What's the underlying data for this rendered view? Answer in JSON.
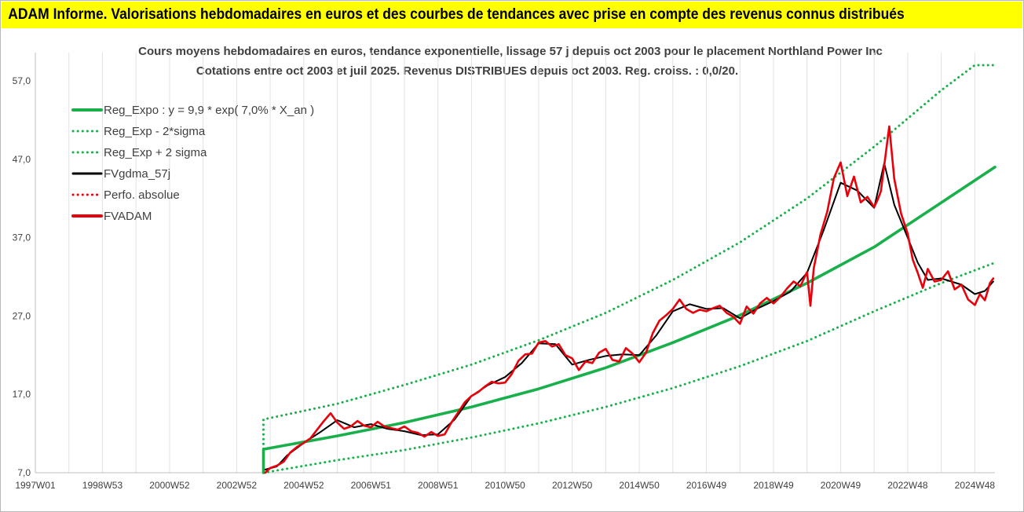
{
  "banner": {
    "title": "ADAM Informe. Valorisations hebdomadaires en euros et des courbes de tendances avec prise en compte des revenus connus distribués",
    "bg_color": "#ffff00"
  },
  "chart_data": {
    "type": "line",
    "title": "Cours moyens hebdomadaires en euros, tendance exponentielle, lissage 57 j depuis oct 2003 pour le placement Northland Power Inc",
    "subtitle": "Cotations entre oct 2003 et juil 2025. Revenus DISTRIBUES depuis oct 2003. Reg. croiss. : 0,0/20.",
    "xlabel": "",
    "ylabel": "",
    "x_range": [
      1997.0,
      2025.6
    ],
    "ylim": [
      7,
      59
    ],
    "y_ticks": [
      "7,0",
      "17,0",
      "27,0",
      "37,0",
      "47,0",
      "57,0"
    ],
    "y_tick_values": [
      7,
      17,
      27,
      37,
      47,
      57
    ],
    "x_ticks": [
      "1997W01",
      "1998W53",
      "2000W52",
      "2002W52",
      "2004W52",
      "2006W51",
      "2008W51",
      "2010W50",
      "2012W50",
      "2014W50",
      "2016W49",
      "2018W49",
      "2020W49",
      "2022W48",
      "2024W48"
    ],
    "x_tick_values": [
      1997.0,
      1999.0,
      2001.0,
      2003.0,
      2005.0,
      2007.0,
      2009.0,
      2011.0,
      2013.0,
      2015.0,
      2017.0,
      2019.0,
      2021.0,
      2023.0,
      2025.0
    ],
    "grid": "vertical",
    "legend_position": "top-left",
    "series": [
      {
        "name": "Reg_Expo : y = 9,9 * exp( 7,0% *  X_an )",
        "color": "#19b04b",
        "style": "solid",
        "x": [
          2003.8,
          2003.8,
          2006,
          2008,
          2010,
          2012,
          2014,
          2016,
          2018,
          2020,
          2022,
          2025.6
        ],
        "y": [
          7.0,
          10.0,
          11.7,
          13.4,
          15.4,
          17.7,
          20.4,
          23.6,
          27.1,
          31.2,
          35.8,
          46.0
        ]
      },
      {
        "name": "Reg_Exp - 2*sigma",
        "color": "#19b04b",
        "style": "dotted",
        "x": [
          2003.8,
          2006,
          2008,
          2010,
          2012,
          2014,
          2016,
          2018,
          2020,
          2022,
          2024,
          2025.6
        ],
        "y": [
          7.0,
          8.6,
          9.9,
          11.5,
          13.3,
          15.4,
          17.8,
          20.6,
          23.8,
          27.6,
          31.2,
          33.8
        ]
      },
      {
        "name": "Reg_Exp + 2 sigma",
        "color": "#19b04b",
        "style": "dotted",
        "x": [
          2003.8,
          2003.8,
          2006,
          2008,
          2010,
          2012,
          2014,
          2016,
          2018,
          2020,
          2022,
          2024,
          2025,
          2025.6
        ],
        "y": [
          7.0,
          13.8,
          15.8,
          18.2,
          20.8,
          23.9,
          27.4,
          31.6,
          36.4,
          42.0,
          48.6,
          55.8,
          59.0,
          59.0
        ]
      },
      {
        "name": "FVgdma_57j",
        "color": "#000000",
        "style": "solid",
        "x": [
          2003.85,
          2004.2,
          2004.5,
          2005.0,
          2005.5,
          2006.0,
          2006.5,
          2007.0,
          2007.5,
          2008.0,
          2008.5,
          2009.0,
          2009.5,
          2010.0,
          2010.5,
          2011.0,
          2011.5,
          2012.0,
          2012.5,
          2013.0,
          2013.5,
          2014.0,
          2014.5,
          2015.0,
          2015.5,
          2016.0,
          2016.5,
          2017.0,
          2017.5,
          2018.0,
          2018.5,
          2019.0,
          2019.5,
          2020.0,
          2020.5,
          2021.0,
          2021.5,
          2022.0,
          2022.3,
          2022.6,
          2023.0,
          2023.3,
          2023.6,
          2024.0,
          2024.3,
          2024.6,
          2025.0,
          2025.3,
          2025.55
        ],
        "y": [
          7.4,
          7.8,
          9.2,
          10.8,
          12.2,
          13.7,
          12.8,
          13.2,
          12.6,
          12.3,
          11.8,
          11.9,
          13.8,
          16.8,
          18.2,
          19.2,
          21.0,
          23.5,
          23.4,
          20.8,
          21.4,
          21.9,
          22.1,
          22.0,
          24.5,
          27.6,
          28.5,
          27.9,
          28.0,
          26.7,
          27.9,
          28.9,
          30.1,
          32.5,
          38.0,
          44.0,
          43.0,
          40.8,
          46.5,
          41.2,
          37.0,
          33.8,
          31.6,
          31.8,
          31.4,
          31.0,
          29.8,
          30.2,
          31.4
        ]
      },
      {
        "name": "Perfo. absolue",
        "color": "#e8000b",
        "style": "dotted",
        "x": [],
        "y": []
      },
      {
        "name": "FVADAM",
        "color": "#e8000b",
        "style": "solid",
        "x": [
          2003.85,
          2004.0,
          2004.2,
          2004.4,
          2004.6,
          2004.8,
          2005.0,
          2005.2,
          2005.4,
          2005.6,
          2005.8,
          2006.0,
          2006.2,
          2006.4,
          2006.6,
          2006.8,
          2007.0,
          2007.2,
          2007.4,
          2007.6,
          2007.8,
          2008.0,
          2008.2,
          2008.4,
          2008.6,
          2008.8,
          2009.0,
          2009.2,
          2009.4,
          2009.6,
          2009.8,
          2010.0,
          2010.2,
          2010.4,
          2010.6,
          2010.8,
          2011.0,
          2011.2,
          2011.4,
          2011.6,
          2011.8,
          2012.0,
          2012.2,
          2012.4,
          2012.6,
          2012.8,
          2013.0,
          2013.2,
          2013.4,
          2013.6,
          2013.8,
          2014.0,
          2014.2,
          2014.4,
          2014.6,
          2014.8,
          2015.0,
          2015.2,
          2015.4,
          2015.6,
          2015.8,
          2016.0,
          2016.2,
          2016.4,
          2016.6,
          2016.8,
          2017.0,
          2017.2,
          2017.4,
          2017.6,
          2017.8,
          2018.0,
          2018.2,
          2018.4,
          2018.6,
          2018.8,
          2019.0,
          2019.2,
          2019.4,
          2019.6,
          2019.8,
          2020.0,
          2020.1,
          2020.2,
          2020.4,
          2020.6,
          2020.8,
          2021.0,
          2021.2,
          2021.4,
          2021.6,
          2021.8,
          2022.0,
          2022.1,
          2022.2,
          2022.3,
          2022.45,
          2022.6,
          2022.8,
          2023.0,
          2023.15,
          2023.3,
          2023.45,
          2023.6,
          2023.8,
          2024.0,
          2024.2,
          2024.4,
          2024.6,
          2024.8,
          2025.0,
          2025.15,
          2025.3,
          2025.45,
          2025.55
        ],
        "y": [
          7.0,
          7.6,
          7.9,
          8.4,
          9.6,
          10.3,
          10.8,
          11.4,
          12.5,
          13.6,
          14.6,
          13.4,
          12.6,
          12.9,
          13.6,
          13.0,
          12.8,
          13.5,
          12.9,
          12.7,
          12.5,
          12.9,
          12.3,
          12.1,
          11.6,
          12.2,
          11.7,
          11.9,
          13.4,
          14.7,
          16.0,
          16.8,
          17.3,
          18.0,
          18.6,
          18.4,
          18.5,
          19.6,
          21.3,
          22.1,
          22.2,
          23.6,
          23.8,
          23.1,
          23.4,
          22.0,
          21.6,
          20.1,
          21.2,
          21.0,
          22.3,
          22.8,
          21.4,
          21.2,
          22.9,
          22.2,
          21.1,
          22.3,
          24.8,
          26.4,
          27.1,
          27.9,
          29.1,
          27.9,
          27.4,
          27.8,
          27.6,
          28.0,
          28.3,
          27.4,
          26.9,
          26.0,
          28.2,
          27.3,
          28.6,
          29.3,
          28.6,
          29.4,
          30.5,
          31.4,
          30.8,
          32.6,
          28.3,
          33.1,
          37.4,
          40.3,
          44.6,
          46.6,
          42.3,
          44.8,
          41.5,
          42.2,
          40.9,
          41.8,
          42.9,
          46.2,
          51.2,
          44.5,
          40.1,
          37.5,
          34.2,
          32.5,
          30.6,
          33.0,
          31.4,
          31.6,
          32.7,
          30.4,
          31.0,
          29.1,
          28.4,
          29.8,
          29.0,
          31.2,
          31.8
        ]
      }
    ]
  }
}
